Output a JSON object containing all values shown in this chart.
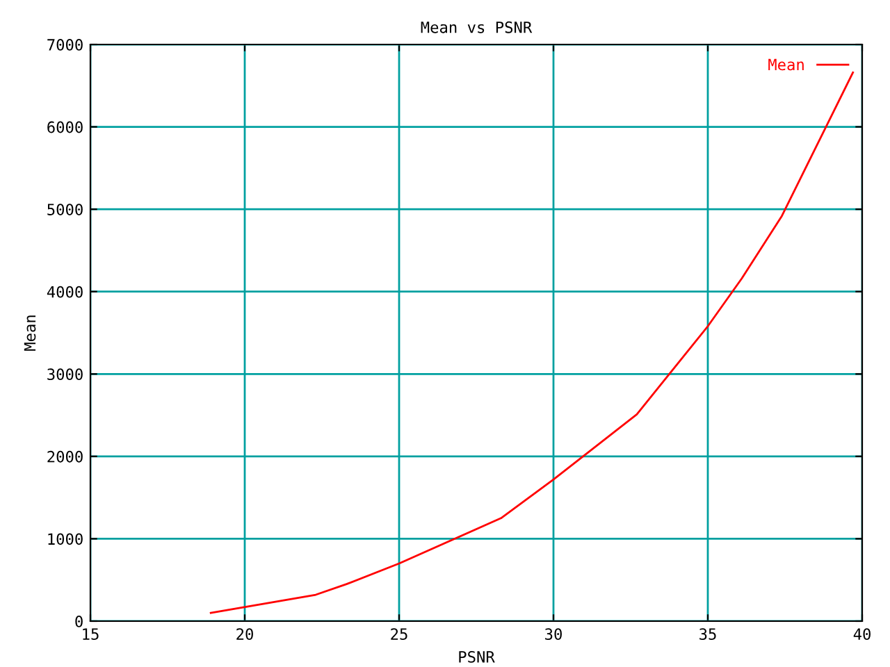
{
  "chart_data": {
    "type": "line",
    "title": "Mean vs PSNR",
    "xlabel": "PSNR",
    "ylabel": "Mean",
    "series": [
      {
        "name": "Mean",
        "color": "#ff0000",
        "x": [
          18.9,
          22.3,
          23.3,
          25.0,
          28.3,
          30.0,
          32.7,
          35.0,
          36.1,
          37.4,
          39.7
        ],
        "values": [
          100,
          320,
          450,
          700,
          1250,
          1720,
          2510,
          3580,
          4160,
          4920,
          6660
        ]
      }
    ],
    "xlim": [
      15,
      40
    ],
    "xticks": [
      15,
      20,
      25,
      30,
      35,
      40
    ],
    "ylim": [
      0,
      7000
    ],
    "yticks": [
      0,
      1000,
      2000,
      3000,
      4000,
      5000,
      6000,
      7000
    ],
    "grid": true,
    "legend": "top right",
    "marker": "none",
    "line_style": "solid"
  }
}
